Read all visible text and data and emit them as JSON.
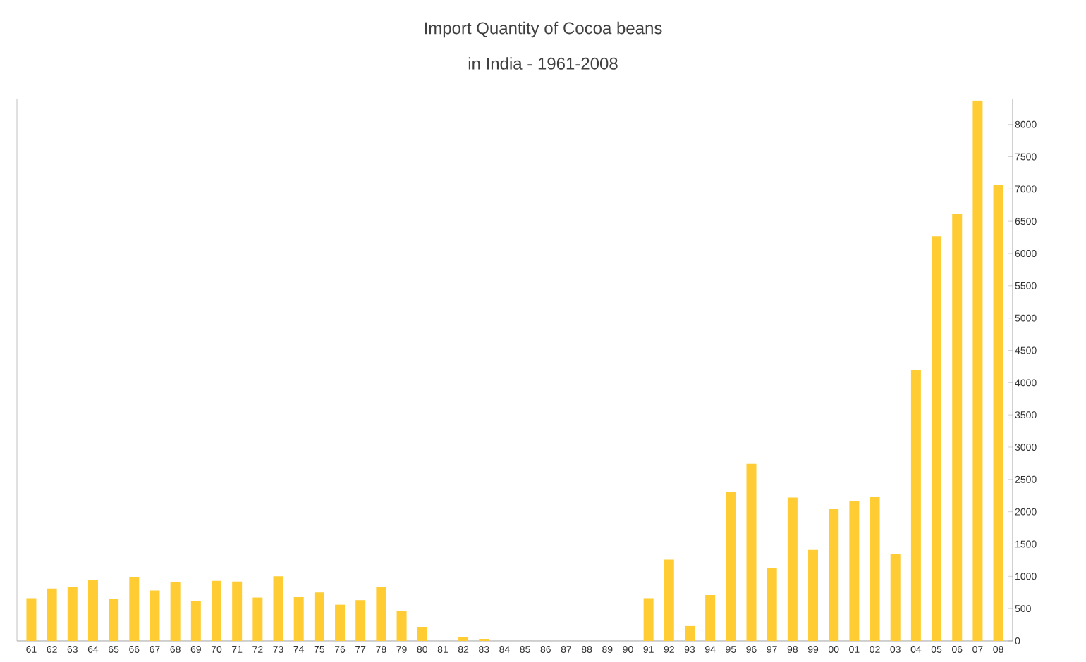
{
  "chart_data": {
    "type": "bar",
    "title": "Import Quantity of Cocoa beans",
    "subtitle": "in India - 1961-2008",
    "categories": [
      "61",
      "62",
      "63",
      "64",
      "65",
      "66",
      "67",
      "68",
      "69",
      "70",
      "71",
      "72",
      "73",
      "74",
      "75",
      "76",
      "77",
      "78",
      "79",
      "80",
      "81",
      "82",
      "83",
      "84",
      "85",
      "86",
      "87",
      "88",
      "89",
      "90",
      "91",
      "92",
      "93",
      "94",
      "95",
      "96",
      "97",
      "98",
      "99",
      "00",
      "01",
      "02",
      "03",
      "04",
      "05",
      "06",
      "07",
      "08"
    ],
    "values": [
      660,
      810,
      830,
      940,
      650,
      990,
      780,
      910,
      620,
      930,
      920,
      670,
      1000,
      680,
      750,
      560,
      630,
      830,
      460,
      210,
      0,
      60,
      30,
      0,
      0,
      0,
      0,
      0,
      0,
      0,
      660,
      1260,
      230,
      710,
      2310,
      2740,
      1130,
      2220,
      1410,
      2040,
      2170,
      2230,
      1350,
      4200,
      6270,
      6610,
      8370,
      7060
    ],
    "color": "#ffcc33",
    "ylim": [
      0,
      8400
    ],
    "yticks": [
      0,
      500,
      1000,
      1500,
      2000,
      2500,
      3000,
      3500,
      4000,
      4500,
      5000,
      5500,
      6000,
      6500,
      7000,
      7500,
      8000
    ],
    "grid": false
  }
}
